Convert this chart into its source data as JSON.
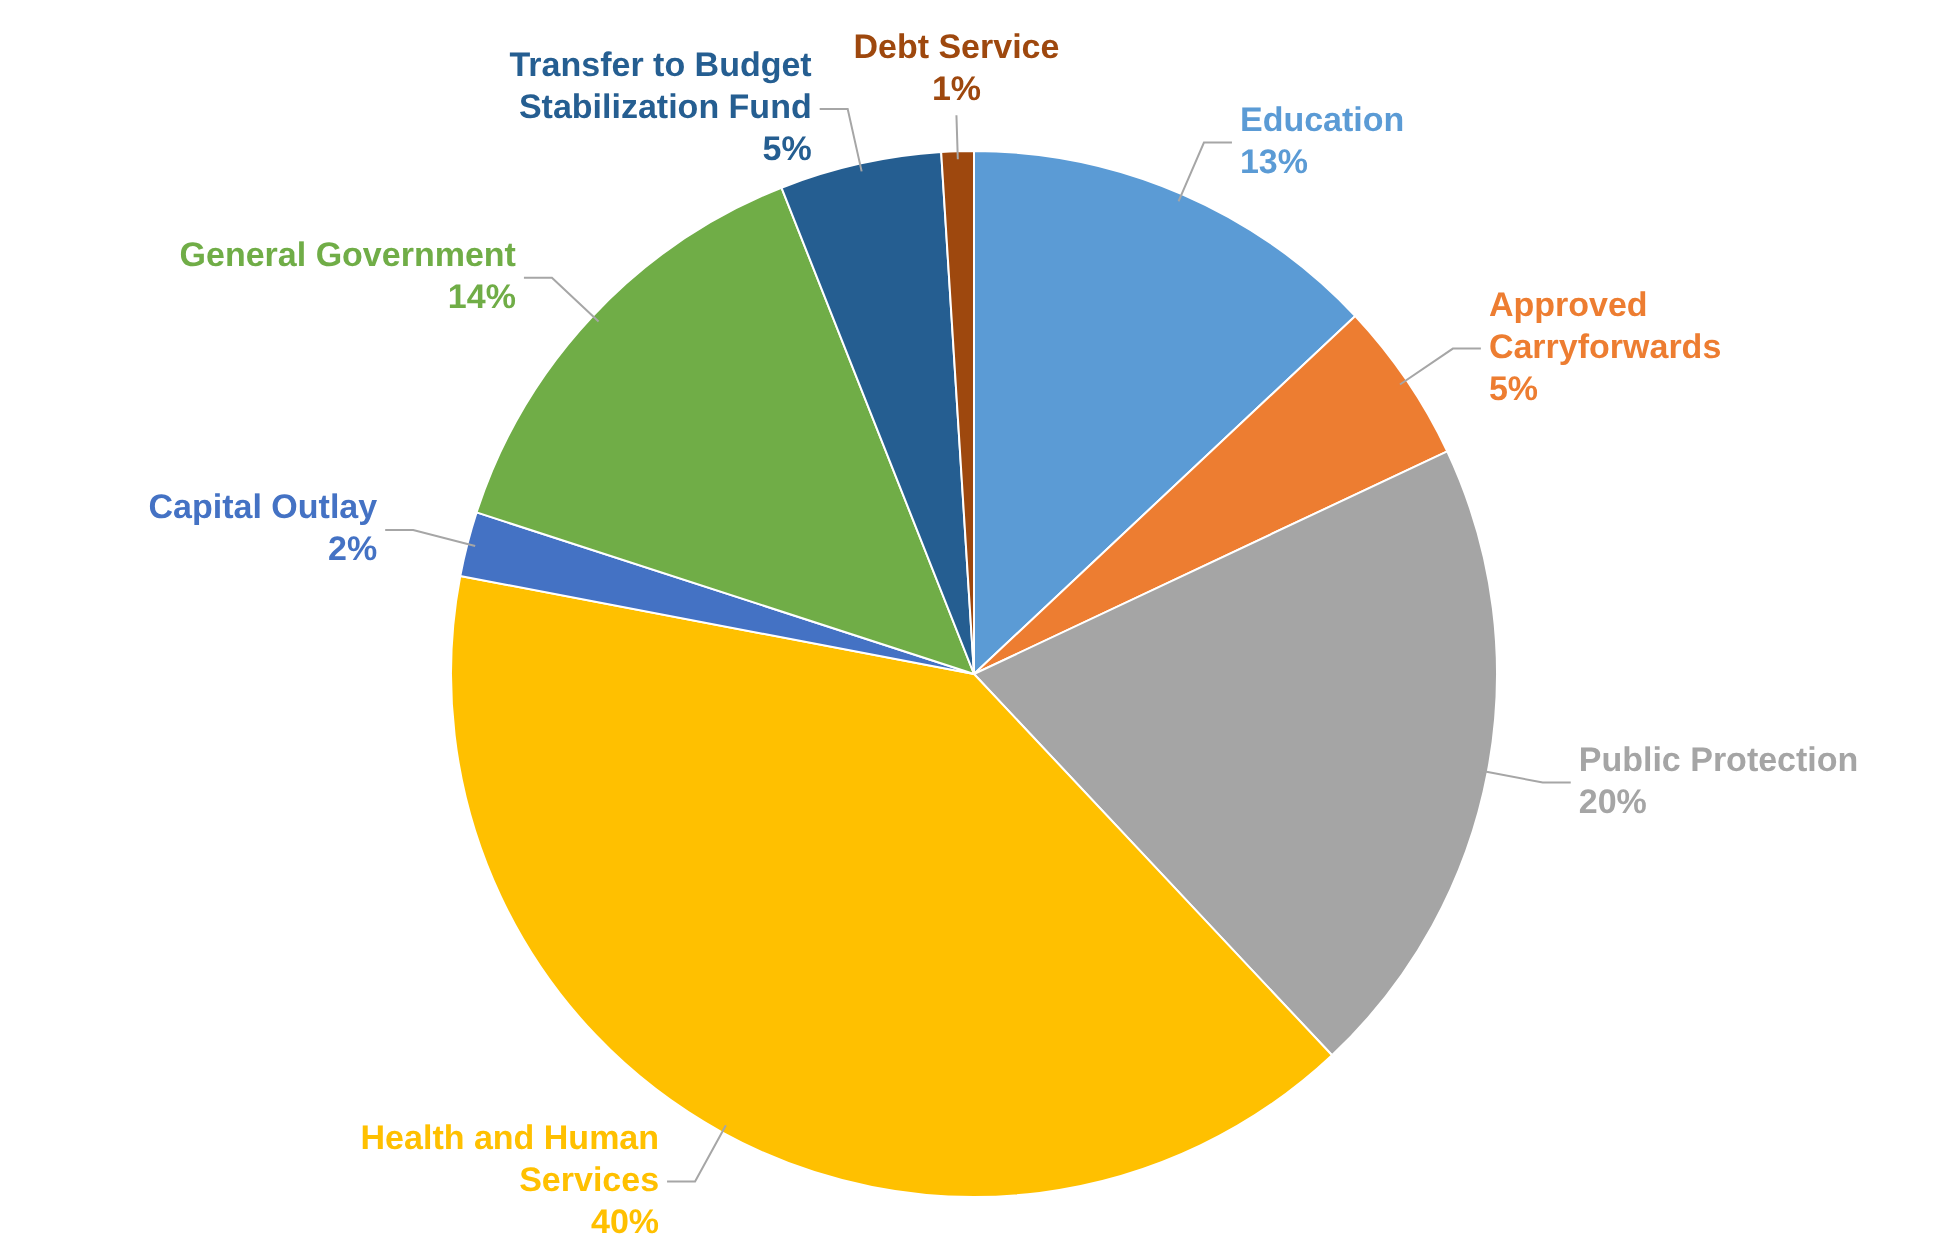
{
  "chart_data": {
    "type": "pie",
    "categories": [
      "Education",
      "Approved Carryforwards",
      "Public Protection",
      "Health and Human Services",
      "Capital Outlay",
      "General Government",
      "Transfer to Budget Stabilization Fund",
      "Debt Service"
    ],
    "values": [
      13,
      5,
      20,
      40,
      2,
      14,
      5,
      1
    ],
    "colors": [
      "#5b9bd5",
      "#ed7d31",
      "#a5a5a5",
      "#ffc000",
      "#4472c4",
      "#70ad47",
      "#255e91",
      "#9e480e"
    ],
    "value_labels": [
      "13%",
      "5%",
      "20%",
      "40%",
      "2%",
      "14%",
      "5%",
      "1%"
    ],
    "legend": false
  }
}
